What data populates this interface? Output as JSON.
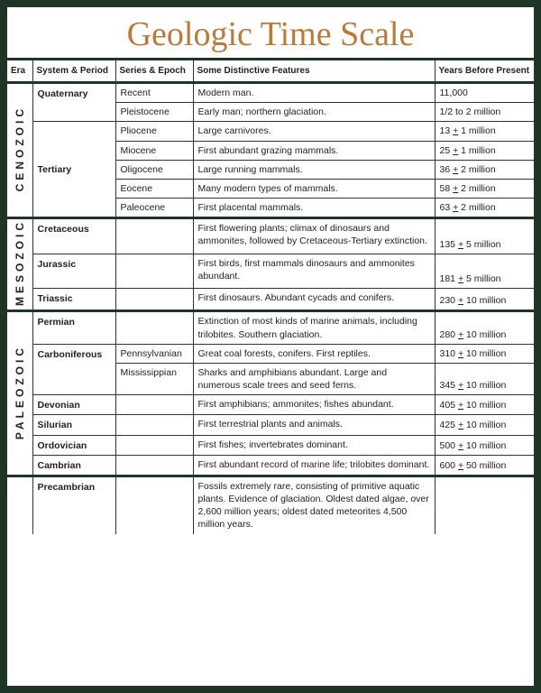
{
  "title": "Geologic Time Scale",
  "colors": {
    "frame": "#1f3527",
    "title": "#b97a3a",
    "rule": "#333333",
    "text": "#222222",
    "bg": "#ffffff"
  },
  "headers": {
    "era": "Era",
    "system": "System & Period",
    "series": "Series & Epoch",
    "features": "Some Distinctive Features",
    "years": "Years Before Present"
  },
  "eras": {
    "cenozoic": "CENOZOIC",
    "mesozoic": "MESOZOIC",
    "paleozoic": "PALEOZOIC"
  },
  "rows": {
    "quaternary_sys": "Quaternary",
    "recent_ser": "Recent",
    "recent_feat": "Modern man.",
    "recent_yr": "11,000",
    "pleist_ser": "Pleistocene",
    "pleist_feat": "Early man; northern glaciation.",
    "pleist_yr": "1/2 to 2 million",
    "tertiary_sys": "Tertiary",
    "plio_ser": "Pliocene",
    "plio_feat": "Large carnivores.",
    "plio_yr_a": "13 ",
    "plio_yr_b": "+",
    "plio_yr_c": " 1 million",
    "mio_ser": "Miocene",
    "mio_feat": "First abundant grazing mammals.",
    "mio_yr_a": "25 ",
    "mio_yr_b": "+",
    "mio_yr_c": " 1 million",
    "olig_ser": "Oligocene",
    "olig_feat": "Large running mammals.",
    "olig_yr_a": "36 ",
    "olig_yr_b": "+",
    "olig_yr_c": " 2 million",
    "eoc_ser": "Eocene",
    "eoc_feat": "Many modern types of mammals.",
    "eoc_yr_a": "58 ",
    "eoc_yr_b": "+",
    "eoc_yr_c": " 2 million",
    "pal_ser": "Paleocene",
    "pal_feat": "First placental mammals.",
    "pal_yr_a": "63 ",
    "pal_yr_b": "+",
    "pal_yr_c": " 2 million",
    "cret_sys": "Cretaceous",
    "cret_feat": "First flowering plants; climax of dinosaurs and ammonites, followed by Cretaceous-Tertiary extinction.",
    "cret_yr_a": "135 ",
    "cret_yr_b": "+",
    "cret_yr_c": " 5 million",
    "jur_sys": "Jurassic",
    "jur_feat": "First birds, first mammals dinosaurs and ammonites abundant.",
    "jur_yr_a": "181 ",
    "jur_yr_b": "+",
    "jur_yr_c": " 5 million",
    "tri_sys": "Triassic",
    "tri_feat": "First dinosaurs. Abundant cycads and conifers.",
    "tri_yr_a": "230 ",
    "tri_yr_b": "+",
    "tri_yr_c": " 10 million",
    "perm_sys": "Permian",
    "perm_feat": "Extinction of most kinds of marine animals, including trilobites. Southern glaciation.",
    "perm_yr_a": "280 ",
    "perm_yr_b": "+",
    "perm_yr_c": " 10 million",
    "carb_sys": "Carboniferous",
    "penn_ser": "Pennsylvanian",
    "penn_feat": "Great coal forests, conifers. First reptiles.",
    "penn_yr_a": "310 ",
    "penn_yr_b": "+",
    "penn_yr_c": " 10 million",
    "miss_ser": "Mississippian",
    "miss_feat": "Sharks and amphibians abundant. Large and numerous scale trees and seed ferns.",
    "miss_yr_a": "345 ",
    "miss_yr_b": "+",
    "miss_yr_c": " 10 million",
    "dev_sys": "Devonian",
    "dev_feat": "First amphibians; ammonites; fishes abundant.",
    "dev_yr_a": "405 ",
    "dev_yr_b": "+",
    "dev_yr_c": " 10 million",
    "sil_sys": "Silurian",
    "sil_feat": "First terrestrial plants and animals.",
    "sil_yr_a": "425 ",
    "sil_yr_b": "+",
    "sil_yr_c": " 10 million",
    "ord_sys": "Ordovician",
    "ord_feat": "First fishes; invertebrates dominant.",
    "ord_yr_a": "500 ",
    "ord_yr_b": "+",
    "ord_yr_c": " 10 million",
    "camb_sys": "Cambrian",
    "camb_feat": "First abundant record of marine life; trilobites dominant.",
    "camb_yr_a": "600 ",
    "camb_yr_b": "+",
    "camb_yr_c": " 50 million",
    "precamb_sys": "Precambrian",
    "precamb_feat": "Fossils extremely rare, consisting of primitive aquatic plants. Evidence of glaciation. Oldest dated algae, over 2,600 million years; oldest dated meteorites 4,500 million years."
  }
}
